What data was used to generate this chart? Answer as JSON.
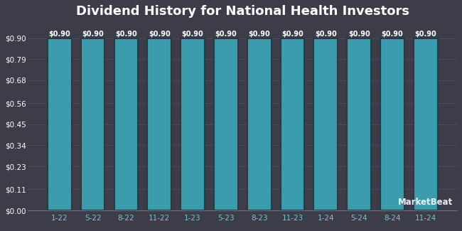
{
  "title": "Dividend History for National Health Investors",
  "categories": [
    "1-22",
    "5-22",
    "8-22",
    "11-22",
    "1-23",
    "5-23",
    "8-23",
    "11-23",
    "1-24",
    "5-24",
    "8-24",
    "11-24"
  ],
  "values": [
    0.9,
    0.9,
    0.9,
    0.9,
    0.9,
    0.9,
    0.9,
    0.9,
    0.9,
    0.9,
    0.9,
    0.9
  ],
  "bar_color": "#3a9cac",
  "bar_edge_color": "#2b3a42",
  "background_color": "#3d3d4a",
  "plot_bg_color": "#3d3d4a",
  "text_color": "#ffffff",
  "xtick_color": "#6ec6d4",
  "grid_color": "#4e4e5e",
  "yticks": [
    0.0,
    0.11,
    0.23,
    0.34,
    0.45,
    0.56,
    0.68,
    0.79,
    0.9
  ],
  "ytick_labels": [
    "$0.00",
    "$0.11",
    "$0.23",
    "$0.34",
    "$0.45",
    "$0.56",
    "$0.68",
    "$0.79",
    "$0.90"
  ],
  "ylim": [
    0,
    0.97
  ],
  "bar_label_format": "$0.90",
  "title_fontsize": 13,
  "tick_fontsize": 7.5,
  "bar_label_fontsize": 7,
  "watermark_text": "MarketBeat",
  "bar_width": 0.72
}
